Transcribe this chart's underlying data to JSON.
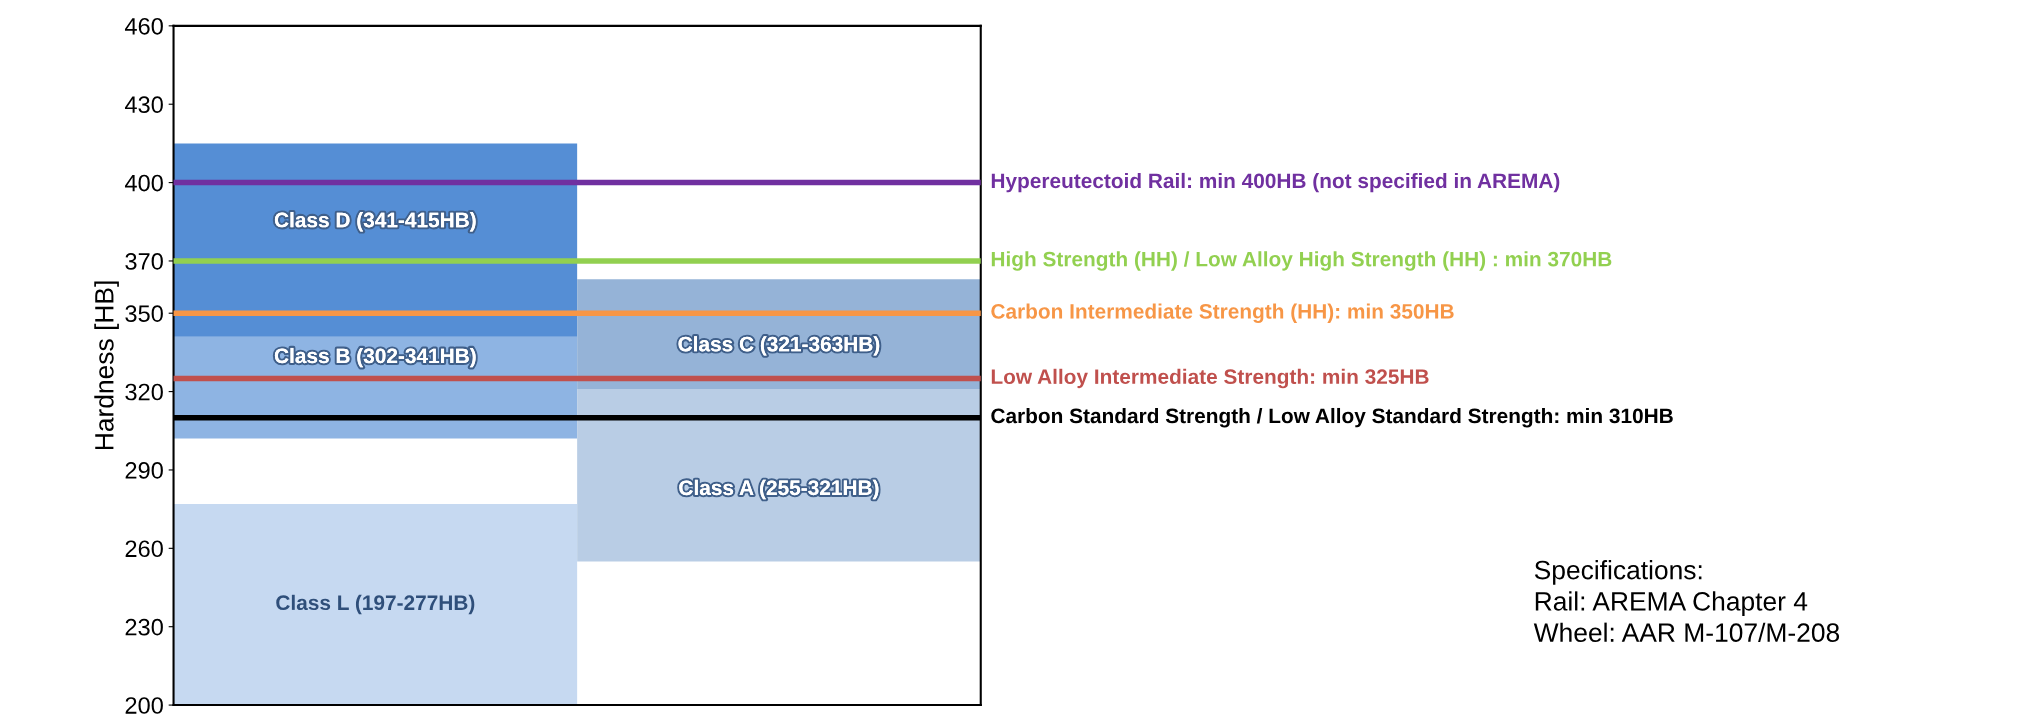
{
  "chart_data": {
    "type": "bar",
    "categories": [
      null,
      null
    ],
    "ylabel": "Hardness [HB]",
    "ylim": [
      200,
      460
    ],
    "yticks": [
      200,
      230,
      260,
      290,
      320,
      350,
      370,
      400,
      430,
      460
    ],
    "tick_labels": "y",
    "series": [
      {
        "color": "#c6d9f1",
        "base": [
          197,
          null
        ],
        "values": [
          80,
          null
        ],
        "value_labels": [
          "Class L (197-277HB)",
          null
        ]
      },
      {
        "color": "#8eb4e3",
        "base": [
          302,
          null
        ],
        "values": [
          39,
          null
        ],
        "value_labels": [
          "Class B (302-341HB)",
          null
        ]
      },
      {
        "color": "#558ed5",
        "base": [
          341,
          null
        ],
        "values": [
          74,
          null
        ],
        "value_labels": [
          "Class D (341-415HB)",
          null
        ]
      },
      {
        "color": "#b9cde5",
        "base": [
          null,
          255
        ],
        "values": [
          null,
          66
        ],
        "value_labels": [
          null,
          "Class A (255-321HB)"
        ]
      },
      {
        "color": "#95b3d7",
        "base": [
          null,
          321
        ],
        "values": [
          null,
          42
        ],
        "value_labels": [
          null,
          "Class C (321-363HB)"
        ]
      }
    ],
    "ref_lines": [
      {
        "axis": "y",
        "value": 400,
        "label": "Hypereutectoid Rail: min 400HB (not specified in AREMA)",
        "color": "#7030a0"
      },
      {
        "axis": "y",
        "value": 370,
        "label": "High Strength (HH) / Low Alloy High Strength (HH) : min 370HB",
        "color": "#92d050"
      },
      {
        "axis": "y",
        "value": 350,
        "label": "Carbon Intermediate Strength (HH): min 350HB",
        "color": "#f79646"
      },
      {
        "axis": "y",
        "value": 325,
        "label": "Low Alloy Intermediate Strength: min 325HB",
        "color": "#c0504d"
      },
      {
        "axis": "y",
        "value": 310,
        "label": "Carbon Standard Strength / Low Alloy Standard Strength: min 310HB",
        "color": "#000000"
      }
    ],
    "annotations": [
      "Specifications:\nRail: AREMA Chapter 4\nWheel: AAR M-107/M-208"
    ]
  }
}
